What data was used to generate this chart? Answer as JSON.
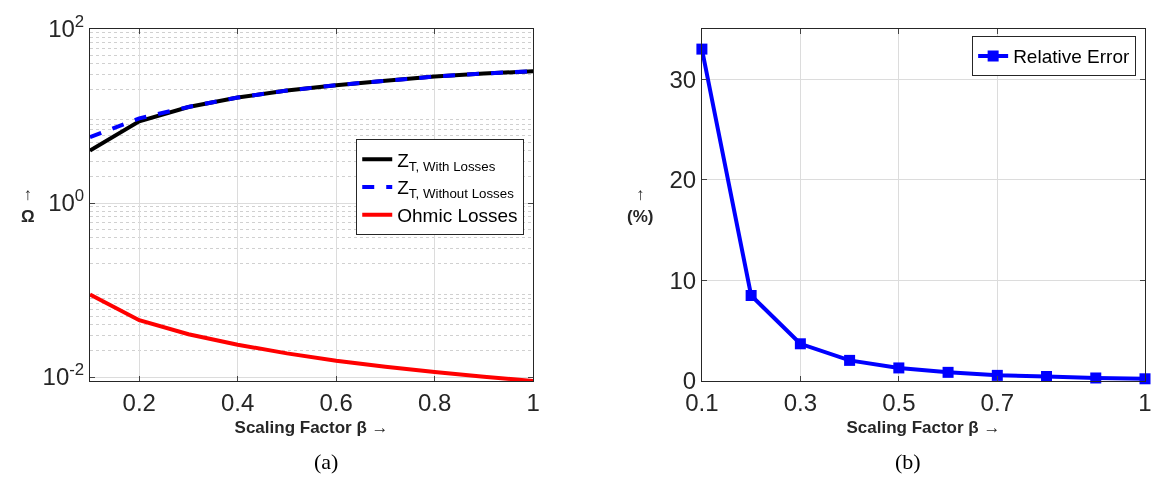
{
  "chart_data": [
    {
      "type": "line",
      "xlabel": "Scaling Factor β →",
      "ylabel": "↑\nΩ",
      "log": "y",
      "grid": true,
      "legend": "right",
      "annotations": [
        "(a)"
      ],
      "x": [
        0.1,
        0.2,
        0.3,
        0.4,
        0.5,
        0.6,
        0.7,
        0.8,
        0.9,
        1.0
      ],
      "xlim": [
        0.1,
        1
      ],
      "xticks": [
        0.2,
        0.4,
        0.6,
        0.8,
        1
      ],
      "ylim": [
        0.009,
        100
      ],
      "yticks": [
        {
          "value": 0.01,
          "label": "10$^{-2}$"
        },
        {
          "value": 1,
          "label": "10$^{0}$"
        },
        {
          "value": 100,
          "label": "10$^{2}$"
        }
      ],
      "series": [
        {
          "name": "Z$_{T, With Losses}$",
          "color": "#000000",
          "line_style": "solid",
          "values": [
            4.0,
            8.7,
            12.7,
            16.3,
            19.6,
            22.6,
            25.4,
            28.4,
            30.8,
            32.7
          ]
        },
        {
          "name": "Z$_{T, Without Losses}$",
          "color": "#0000ff",
          "line_style": "dashed",
          "values": [
            5.7,
            9.4,
            12.7,
            16.3,
            19.6,
            22.6,
            25.4,
            28.4,
            30.8,
            32.7
          ]
        },
        {
          "name": "Ohmic Losses",
          "color": "#ff0000",
          "line_style": "solid",
          "values": [
            0.089,
            0.045,
            0.031,
            0.0235,
            0.0187,
            0.0154,
            0.0131,
            0.0114,
            0.0101,
            0.009
          ]
        }
      ]
    },
    {
      "type": "line",
      "xlabel": "Scaling Factor β →",
      "ylabel": "↑\n(%)",
      "grid": true,
      "legend": "top right",
      "marker": "square",
      "annotations": [
        "(b)"
      ],
      "x": [
        0.1,
        0.2,
        0.3,
        0.4,
        0.5,
        0.6,
        0.7,
        0.8,
        0.9,
        1.0
      ],
      "xlim": [
        0.1,
        1
      ],
      "xticks": [
        0.1,
        0.3,
        0.5,
        0.7,
        1
      ],
      "ylim": [
        0,
        35
      ],
      "yticks": [
        0,
        10,
        20,
        30
      ],
      "series": [
        {
          "name": "Relative Error",
          "color": "#0000ff",
          "values": [
            33.0,
            8.5,
            3.7,
            2.05,
            1.3,
            0.86,
            0.56,
            0.45,
            0.3,
            0.22
          ]
        }
      ]
    }
  ]
}
